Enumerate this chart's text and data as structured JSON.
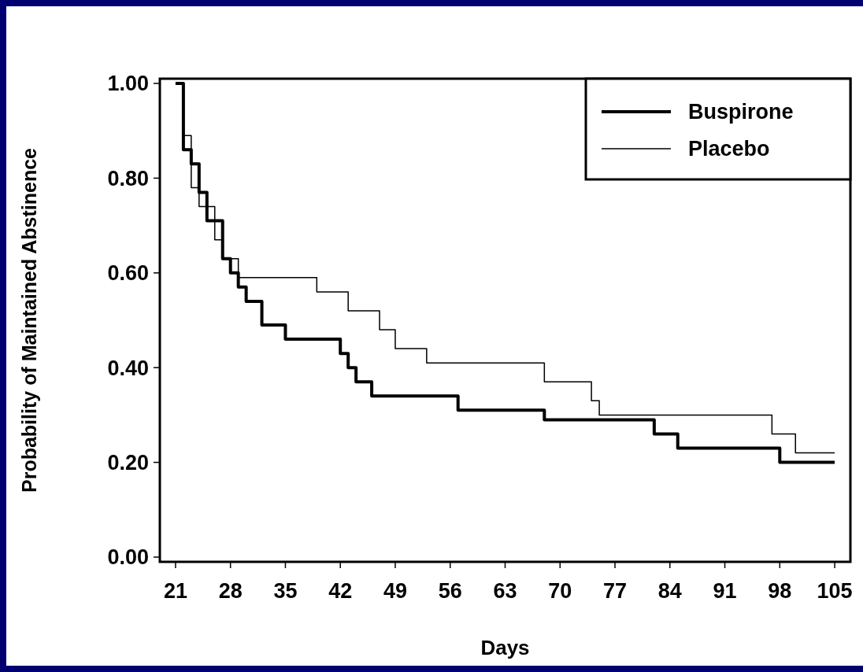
{
  "chart_data": {
    "type": "step",
    "xlabel": "Days",
    "ylabel": "Probability of Maintained Abstinence",
    "xlim": [
      19,
      107
    ],
    "xticks": [
      21,
      28,
      35,
      42,
      49,
      56,
      63,
      70,
      77,
      84,
      91,
      98,
      105
    ],
    "ylim": [
      -0.01,
      1.01
    ],
    "yticks": [
      {
        "value": 0,
        "label": "0.00"
      },
      {
        "value": 0.2,
        "label": "0.20"
      },
      {
        "value": 0.4,
        "label": "0.40"
      },
      {
        "value": 0.6,
        "label": "0.60"
      },
      {
        "value": 0.8,
        "label": "0.80"
      },
      {
        "value": 1,
        "label": "1.00"
      }
    ],
    "grid": false,
    "legend": "top right",
    "series": [
      {
        "name": "Buspirone",
        "color": "#000000",
        "x": [
          21,
          22,
          23,
          24,
          25,
          27,
          28,
          29,
          30,
          32,
          35,
          42,
          43,
          44,
          46,
          57,
          68,
          82,
          85,
          98,
          105
        ],
        "values": [
          1.0,
          0.86,
          0.83,
          0.77,
          0.71,
          0.63,
          0.6,
          0.57,
          0.54,
          0.49,
          0.46,
          0.43,
          0.4,
          0.37,
          0.34,
          0.31,
          0.29,
          0.26,
          0.23,
          0.2,
          0.2
        ]
      },
      {
        "name": "Placebo",
        "color": "#000000",
        "x": [
          21,
          22,
          23,
          24,
          26,
          27,
          29,
          39,
          43,
          47,
          49,
          53,
          68,
          74,
          75,
          97,
          100,
          105
        ],
        "values": [
          1.0,
          0.89,
          0.78,
          0.74,
          0.67,
          0.63,
          0.59,
          0.56,
          0.52,
          0.48,
          0.44,
          0.41,
          0.37,
          0.33,
          0.3,
          0.26,
          0.22,
          0.22
        ]
      }
    ]
  }
}
